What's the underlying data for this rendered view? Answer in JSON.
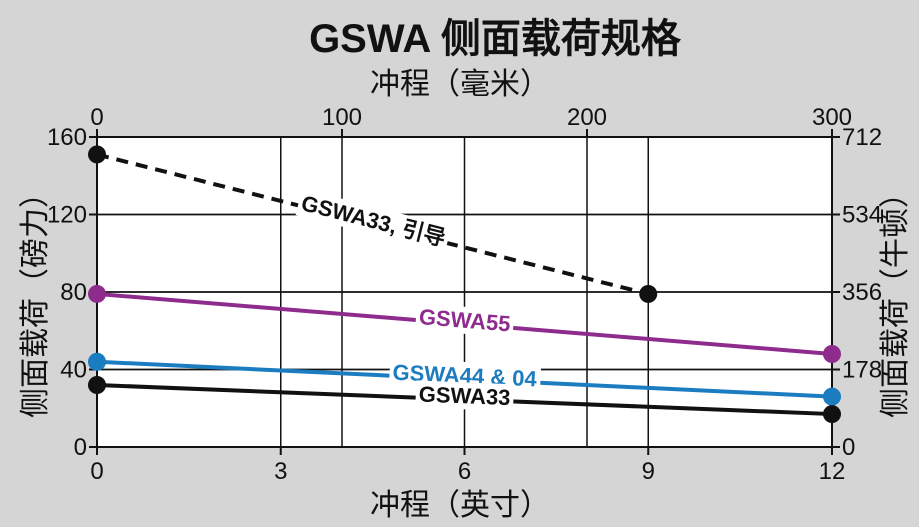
{
  "chart_data": {
    "type": "line",
    "title": "GSWA 侧面载荷规格",
    "x_bottom": {
      "label": "冲程（英寸）",
      "range": [
        0,
        12
      ],
      "ticks": [
        "0",
        "3",
        "6",
        "9",
        "12"
      ]
    },
    "x_top": {
      "label": "冲程（毫米）",
      "range": [
        0,
        300
      ],
      "ticks": [
        "0",
        "100",
        "200",
        "300"
      ]
    },
    "y_left": {
      "label": "侧面载荷（磅力）",
      "range": [
        0,
        160
      ],
      "ticks": [
        "0",
        "40",
        "80",
        "120",
        "160"
      ]
    },
    "y_right": {
      "label": "侧面载荷（牛顿）",
      "range": [
        0,
        712
      ],
      "ticks": [
        "0",
        "178",
        "356",
        "534",
        "712"
      ]
    },
    "grid": true,
    "series": [
      {
        "name": "GSWA33, 引导",
        "color": "#111111",
        "dashed": true,
        "x": [
          0,
          9
        ],
        "y": [
          151,
          79
        ]
      },
      {
        "name": "GSWA55",
        "color": "#8e2c8e",
        "dashed": false,
        "x": [
          0,
          12
        ],
        "y": [
          79,
          48
        ]
      },
      {
        "name": "GSWA44 & 04",
        "color": "#1b7cc0",
        "dashed": false,
        "x": [
          0,
          12
        ],
        "y": [
          44,
          26
        ]
      },
      {
        "name": "GSWA33",
        "color": "#111111",
        "dashed": false,
        "x": [
          0,
          12
        ],
        "y": [
          32,
          17
        ]
      }
    ]
  }
}
